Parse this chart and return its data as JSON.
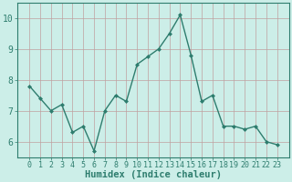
{
  "x": [
    0,
    1,
    2,
    3,
    4,
    5,
    6,
    7,
    8,
    9,
    10,
    11,
    12,
    13,
    14,
    15,
    16,
    17,
    18,
    19,
    20,
    21,
    22,
    23
  ],
  "y": [
    7.8,
    7.4,
    7.0,
    7.2,
    6.3,
    6.5,
    5.7,
    7.0,
    7.5,
    7.3,
    8.5,
    8.75,
    9.0,
    9.5,
    10.1,
    8.8,
    7.3,
    7.5,
    6.5,
    6.5,
    6.4,
    6.5,
    6.0,
    5.9
  ],
  "xlabel": "Humidex (Indice chaleur)",
  "line_color": "#2e7d6e",
  "marker": "D",
  "marker_size": 2.0,
  "bg_color": "#cceee8",
  "grid_color": "#c0a0a0",
  "ylim": [
    5.5,
    10.5
  ],
  "yticks": [
    6,
    7,
    8,
    9,
    10
  ],
  "xticks": [
    0,
    1,
    2,
    3,
    4,
    5,
    6,
    7,
    8,
    9,
    10,
    11,
    12,
    13,
    14,
    15,
    16,
    17,
    18,
    19,
    20,
    21,
    22,
    23
  ],
  "tick_fontsize": 6.0,
  "xlabel_fontsize": 7.5,
  "linewidth": 1.0
}
